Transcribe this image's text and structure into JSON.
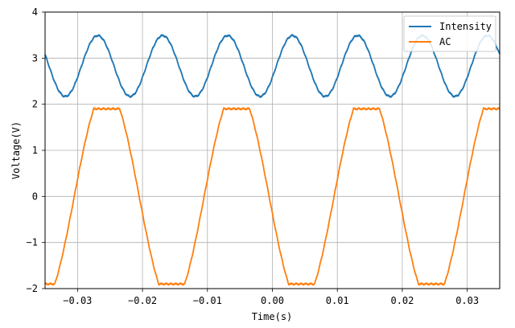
{
  "chart_data": {
    "type": "line",
    "xlabel": "Time(s)",
    "ylabel": "Voltage(V)",
    "xlim": [
      -0.035,
      0.035
    ],
    "ylim": [
      -2,
      4
    ],
    "x_ticks": [
      -0.03,
      -0.02,
      -0.01,
      0.0,
      0.01,
      0.02,
      0.03
    ],
    "x_tick_labels": [
      "−0.03",
      "−0.02",
      "−0.01",
      "0.00",
      "0.01",
      "0.02",
      "0.03"
    ],
    "y_ticks": [
      -2,
      -1,
      0,
      1,
      2,
      3,
      4
    ],
    "y_tick_labels": [
      "−2",
      "−1",
      "0",
      "1",
      "2",
      "3",
      "4"
    ],
    "grid": true,
    "legend_position": "top-right",
    "series": [
      {
        "name": "Intensity",
        "color": "#1f77b4",
        "waveform": "sine",
        "offset": 2.83,
        "amplitude": 0.66,
        "frequency_hz": 100,
        "phase_rad": 5.9
      },
      {
        "name": "AC",
        "color": "#ff7f0e",
        "waveform": "clipped-sine",
        "amplitude": 2.35,
        "clip_level": 1.9,
        "frequency_hz": 50,
        "phase_rad": 3.3
      }
    ]
  }
}
